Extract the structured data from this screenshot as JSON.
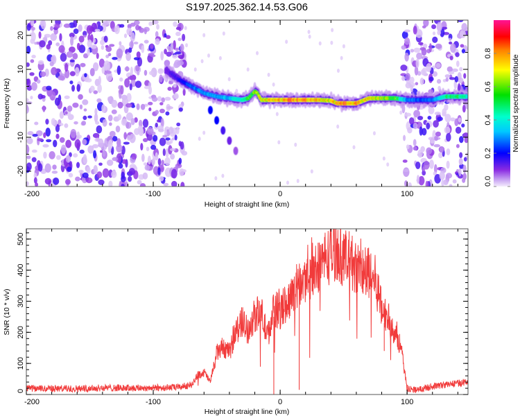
{
  "figure_title": "S197.2025.362.14.53.G06",
  "chart_data": [
    {
      "type": "heatmap",
      "title": "S197.2025.362.14.53.G06",
      "xlabel": "Height of straight line (km)",
      "ylabel": "Frequency (Hz)",
      "xlim": [
        -200,
        148
      ],
      "ylim": [
        -24.5,
        24.5
      ],
      "xticks": [
        -200,
        -100,
        0,
        100
      ],
      "yticks": [
        -20,
        -10,
        0,
        10,
        20
      ],
      "colorbar": {
        "label": "Normalized spectral amplitude",
        "range": [
          0,
          1
        ],
        "ticks": [
          0.0,
          0.2,
          0.4,
          0.6,
          0.8
        ],
        "tick_labels": [
          "0.0",
          "0.2",
          "0.4",
          "0.6",
          "0.8"
        ],
        "colors": [
          "#ffffff",
          "#e8d8f8",
          "#8a2be2",
          "#0000ff",
          "#00ffff",
          "#00ff00",
          "#ffff00",
          "#ff0000",
          "#ff1493"
        ]
      },
      "noise_regions": [
        {
          "x_range": [
            -200,
            -75
          ],
          "description": "broadband low-amplitude noise"
        },
        {
          "x_range": [
            97,
            148
          ],
          "description": "broadband low-amplitude noise"
        }
      ],
      "ridge": {
        "description": "dominant frequency ridge",
        "x": [
          -90,
          -80,
          -70,
          -60,
          -50,
          -40,
          -30,
          -25,
          -20,
          -18,
          -15,
          -10,
          0,
          10,
          20,
          30,
          40,
          45,
          50,
          60,
          70,
          80,
          90,
          100,
          110,
          120,
          130,
          140,
          148
        ],
        "y": [
          10,
          7,
          5,
          3,
          2,
          1.5,
          1,
          1.5,
          3.5,
          3,
          1,
          1,
          1,
          1,
          1,
          1,
          0.8,
          0,
          0,
          0,
          1.5,
          1.5,
          1.5,
          1,
          1,
          1,
          2,
          2,
          2
        ],
        "amplitude": [
          0.15,
          0.2,
          0.3,
          0.35,
          0.35,
          0.4,
          0.5,
          0.6,
          0.75,
          0.7,
          0.8,
          0.85,
          0.9,
          0.95,
          0.95,
          0.9,
          0.8,
          0.95,
          0.97,
          0.95,
          0.85,
          0.75,
          0.7,
          0.35,
          0.3,
          0.3,
          0.55,
          0.6,
          0.5
        ]
      },
      "secondary_branch": {
        "description": "faint descending branch",
        "x": [
          -55,
          -50,
          -45,
          -40,
          -35
        ],
        "y": [
          -2,
          -5,
          -8,
          -11,
          -14
        ],
        "amplitude": [
          0.2,
          0.2,
          0.15,
          0.12,
          0.08
        ]
      }
    },
    {
      "type": "line",
      "xlabel": "Height of straight line (km)",
      "ylabel": "SNR (10 * v/v)",
      "xlim": [
        -200,
        148
      ],
      "ylim": [
        0,
        533
      ],
      "xticks": [
        -200,
        -100,
        0,
        100
      ],
      "yticks": [
        0,
        100,
        200,
        300,
        400,
        500
      ],
      "series": [
        {
          "name": "SNR",
          "color": "#f03030",
          "x": [
            -200,
            -180,
            -160,
            -140,
            -120,
            -100,
            -80,
            -70,
            -65,
            -60,
            -55,
            -50,
            -45,
            -40,
            -35,
            -30,
            -25,
            -20,
            -15,
            -10,
            -5,
            0,
            5,
            10,
            15,
            20,
            25,
            30,
            35,
            40,
            45,
            50,
            55,
            60,
            65,
            70,
            75,
            80,
            85,
            90,
            95,
            100,
            105,
            110,
            120,
            130,
            140,
            148
          ],
          "y": [
            18,
            18,
            18,
            20,
            20,
            20,
            22,
            30,
            60,
            70,
            40,
            130,
            150,
            130,
            200,
            230,
            200,
            250,
            260,
            180,
            270,
            260,
            290,
            320,
            350,
            360,
            390,
            410,
            430,
            440,
            460,
            430,
            420,
            400,
            380,
            380,
            360,
            270,
            240,
            200,
            150,
            20,
            15,
            15,
            25,
            30,
            35,
            40
          ]
        }
      ]
    }
  ]
}
